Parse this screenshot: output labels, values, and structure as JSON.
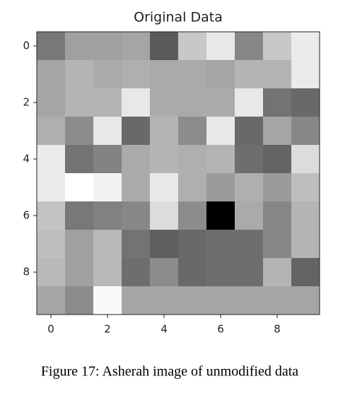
{
  "chart_data": {
    "type": "heatmap",
    "title": "Original Data",
    "colormap": "gray",
    "values": [
      [
        120,
        160,
        160,
        165,
        90,
        200,
        232,
        135,
        200,
        235
      ],
      [
        165,
        180,
        170,
        175,
        170,
        170,
        165,
        180,
        180,
        235
      ],
      [
        165,
        180,
        180,
        232,
        170,
        170,
        170,
        232,
        115,
        105
      ],
      [
        175,
        140,
        232,
        105,
        180,
        140,
        232,
        105,
        165,
        135
      ],
      [
        235,
        115,
        130,
        170,
        180,
        175,
        180,
        110,
        100,
        220
      ],
      [
        235,
        255,
        242,
        170,
        232,
        175,
        155,
        175,
        155,
        190
      ],
      [
        195,
        120,
        130,
        135,
        220,
        140,
        0,
        170,
        135,
        180
      ],
      [
        190,
        160,
        185,
        115,
        95,
        105,
        110,
        110,
        135,
        180
      ],
      [
        185,
        160,
        185,
        110,
        140,
        105,
        110,
        110,
        180,
        100
      ],
      [
        165,
        140,
        250,
        165,
        165,
        165,
        165,
        165,
        165,
        165
      ]
    ],
    "xlim": [
      -0.5,
      9.5
    ],
    "ylim": [
      9.5,
      -0.5
    ],
    "xticks": [
      0,
      2,
      4,
      6,
      8
    ],
    "yticks": [
      0,
      2,
      4,
      6,
      8
    ]
  },
  "caption": "Figure 17: Asherah image of unmodified data"
}
